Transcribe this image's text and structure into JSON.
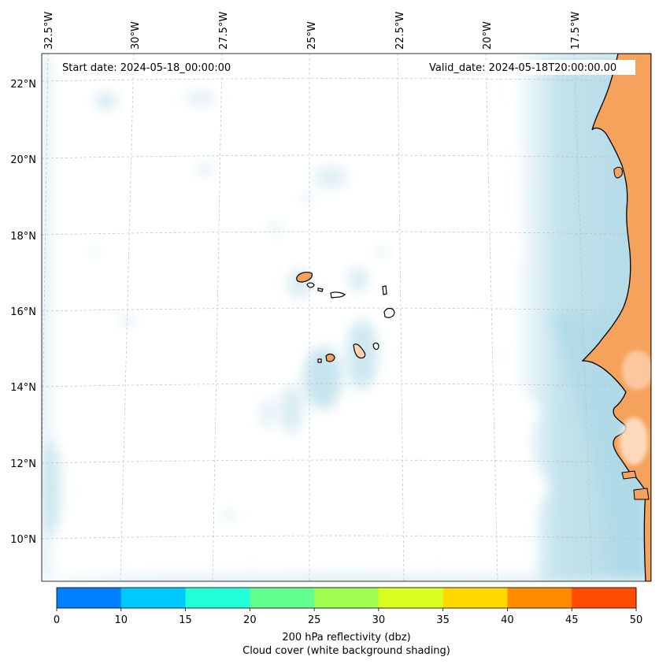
{
  "map": {
    "start_date": "Start date: 2024-05-18_00:00:00",
    "valid_date": "Valid_date: 2024-05-18T20:00:00.00",
    "lon_labels": [
      "32.5°W",
      "30°W",
      "27.5°W",
      "25°W",
      "22.5°W",
      "20°W",
      "17.5°W"
    ],
    "lat_labels": [
      "22°N",
      "20°N",
      "18°N",
      "16°N",
      "14°N",
      "12°N",
      "10°N"
    ],
    "land_color": "#f5a25d",
    "cloud_color": "#add8e6"
  },
  "colorbar": {
    "ticks": [
      "0",
      "10",
      "15",
      "20",
      "25",
      "30",
      "35",
      "40",
      "45",
      "50"
    ],
    "colors": [
      "#0080ff",
      "#00c8ff",
      "#20ffd8",
      "#60ff90",
      "#a0ff50",
      "#d8ff20",
      "#ffd800",
      "#ff8c00",
      "#ff4c00"
    ],
    "label_line1": "200 hPa reflectivity (dbz)",
    "label_line2": "Cloud cover (white background shading)"
  }
}
